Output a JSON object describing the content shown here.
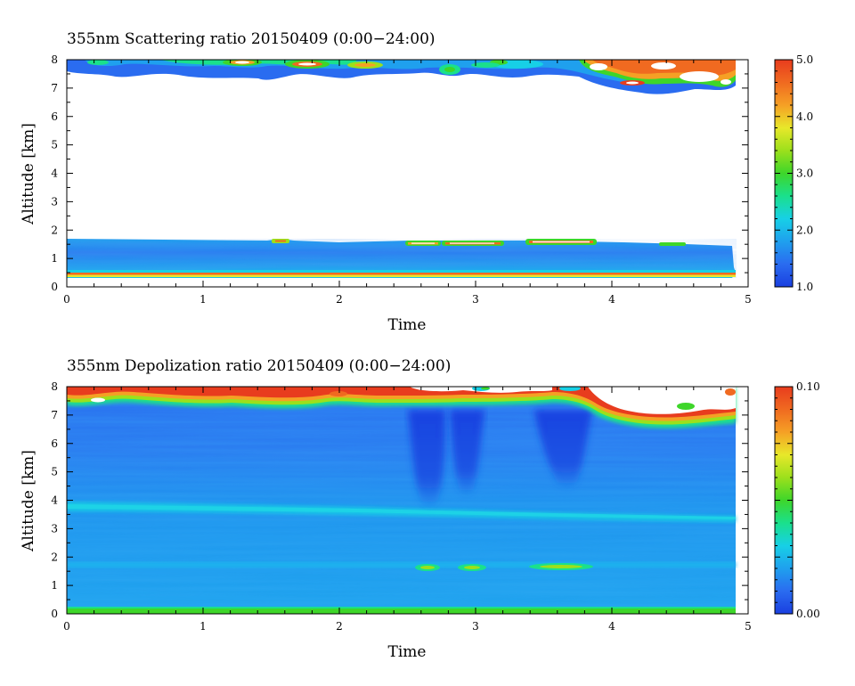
{
  "chart_data": [
    {
      "type": "heatmap",
      "title": "355nm Scattering ratio  20150409 (0:00−24:00)",
      "xlabel": "Time",
      "ylabel": "Altitude [km]",
      "xlim": [
        0,
        5
      ],
      "ylim": [
        0,
        8
      ],
      "xticks": [
        "0",
        "1",
        "2",
        "3",
        "4",
        "5"
      ],
      "yticks": [
        "0",
        "1",
        "2",
        "3",
        "4",
        "5",
        "6",
        "7",
        "8"
      ],
      "colorbar": {
        "min": 1.0,
        "max": 5.0,
        "ticks": [
          "1.0",
          "2.0",
          "3.0",
          "4.0",
          "5.0"
        ],
        "tick_values": [
          1.0,
          2.0,
          3.0,
          4.0,
          5.0
        ]
      },
      "data_extent_x": 4.92,
      "background": "#ffffff",
      "layers": [
        {
          "name": "boundary layer",
          "y_bottom": 0.3,
          "y_top": 1.65,
          "value": 1.6
        },
        {
          "name": "surface band",
          "y_bottom": 0.3,
          "y_top": 0.42,
          "value": 3.8
        },
        {
          "name": "thin layer",
          "y_bottom": 1.45,
          "y_top": 1.6,
          "x_ranges": [
            [
              2.55,
              2.95
            ],
            [
              3.1,
              3.3
            ],
            [
              3.45,
              3.85
            ]
          ],
          "value": 4.0
        },
        {
          "name": "upper cloud",
          "y_bottom": 6.7,
          "y_top": 8.0,
          "value": 2.8
        }
      ]
    },
    {
      "type": "heatmap",
      "title": "355nm Depolization ratio  20150409 (0:00−24:00)",
      "xlabel": "Time",
      "ylabel": "Altitude [km]",
      "xlim": [
        0,
        5
      ],
      "ylim": [
        0,
        8
      ],
      "xticks": [
        "0",
        "1",
        "2",
        "3",
        "4",
        "5"
      ],
      "yticks": [
        "0",
        "1",
        "2",
        "3",
        "4",
        "5",
        "6",
        "7",
        "8"
      ],
      "colorbar": {
        "min": 0.0,
        "max": 0.1,
        "ticks": [
          "0.00",
          "0.10"
        ],
        "tick_values": [
          0.0,
          0.1
        ]
      },
      "data_extent_x": 4.92,
      "background": "#ffffff",
      "layers": [
        {
          "name": "free troposphere",
          "y_bottom": 0.0,
          "y_top": 7.4,
          "value": 0.02
        },
        {
          "name": "band 3.5 km",
          "y_bottom": 3.35,
          "y_top": 3.8,
          "value": 0.035
        },
        {
          "name": "thin layer 1.6 km",
          "y_bottom": 1.5,
          "y_top": 1.65,
          "value": 0.04
        },
        {
          "name": "surface band",
          "y_bottom": 0.0,
          "y_top": 0.08,
          "value": 0.05
        },
        {
          "name": "low-depol plumes",
          "x_ranges": [
            [
              2.58,
              2.8
            ],
            [
              2.85,
              3.05
            ],
            [
              3.45,
              3.85
            ]
          ],
          "y_bottom": 3.8,
          "y_top": 7.3,
          "value": 0.005
        },
        {
          "name": "upper cloud",
          "y_bottom": 7.0,
          "y_top": 8.0,
          "value": 0.09
        }
      ]
    }
  ],
  "colors": {
    "colormap": [
      "#1a3fe0",
      "#2a6cf0",
      "#1fa0ee",
      "#17d0e6",
      "#1ae08c",
      "#3ed62a",
      "#9ce01c",
      "#e8e82a",
      "#f5a025",
      "#f06a20",
      "#e83c1e"
    ],
    "axis": "#000000",
    "background": "#ffffff"
  }
}
